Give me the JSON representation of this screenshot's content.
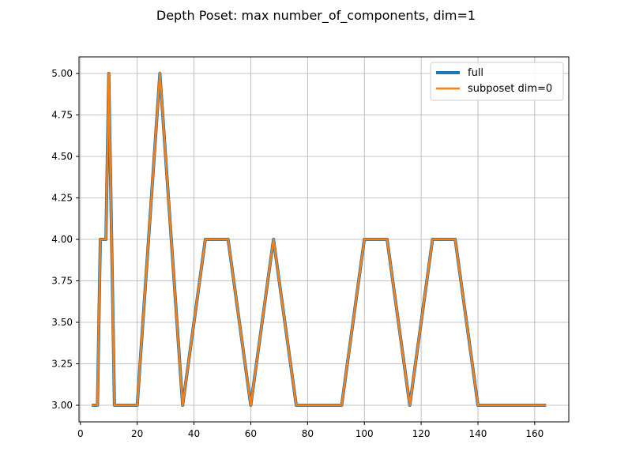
{
  "chart_data": {
    "type": "line",
    "title": "Depth Poset: max number_of_components, dim=1",
    "xlabel": "",
    "ylabel": "",
    "xlim": [
      -0.5,
      172
    ],
    "ylim": [
      2.9,
      5.1
    ],
    "xticks": [
      0,
      20,
      40,
      60,
      80,
      100,
      120,
      140,
      160
    ],
    "yticks": [
      3.0,
      3.25,
      3.5,
      3.75,
      4.0,
      4.25,
      4.5,
      4.75,
      5.0
    ],
    "ytick_labels": [
      "3.00",
      "3.25",
      "3.50",
      "3.75",
      "4.00",
      "4.25",
      "4.50",
      "4.75",
      "5.00"
    ],
    "grid": true,
    "legend_position": "top-right",
    "series": [
      {
        "name": "full",
        "color": "#1f77b4",
        "x": [
          4,
          6,
          7,
          9,
          10,
          12,
          20,
          28,
          36,
          44,
          52,
          60,
          68,
          76,
          84,
          92,
          100,
          108,
          116,
          124,
          132,
          140,
          148,
          156,
          164
        ],
        "y": [
          3,
          3,
          4,
          4,
          5,
          3,
          3,
          5,
          3,
          4,
          4,
          3,
          4,
          3,
          3,
          3,
          4,
          4,
          3,
          4,
          4,
          3,
          3,
          3,
          3
        ]
      },
      {
        "name": "subposet dim=0",
        "color": "#ff7f0e",
        "x": [
          4,
          6,
          7,
          9,
          10,
          12,
          20,
          28,
          36,
          44,
          52,
          60,
          68,
          76,
          84,
          92,
          100,
          108,
          116,
          124,
          132,
          140,
          148,
          156,
          164
        ],
        "y": [
          3,
          3,
          4,
          4,
          5,
          3,
          3,
          5,
          3,
          4,
          4,
          3,
          4,
          3,
          3,
          3,
          4,
          4,
          3,
          4,
          4,
          3,
          3,
          3,
          3
        ]
      }
    ]
  }
}
